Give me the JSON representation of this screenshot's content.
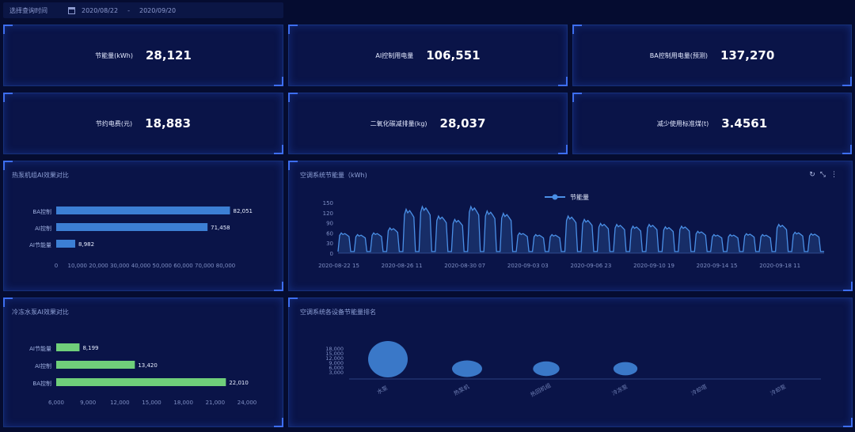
{
  "query": {
    "label": "选择查询时间",
    "start": "2020/08/22",
    "separator": "-",
    "end": "2020/09/20"
  },
  "kpis": [
    {
      "label": "节能量(kWh)",
      "value": "28,121"
    },
    {
      "label": "AI控制用电量",
      "value": "106,551"
    },
    {
      "label": "BA控制用电量(预测)",
      "value": "137,270"
    },
    {
      "label": "节约电费(元)",
      "value": "18,883"
    },
    {
      "label": "二氧化碳减排量(kg)",
      "value": "28,037"
    },
    {
      "label": "减少使用标准煤(t)",
      "value": "3.4561"
    }
  ],
  "panels": {
    "chiller_title": "热泵机组AI效果对比",
    "line_title": "空调系统节能量（kWh)",
    "pump_title": "冷冻水泵AI效果对比",
    "rank_title": "空调系统各设备节能量排名"
  },
  "colors": {
    "bar_blue": "#3c7fd4",
    "bar_green": "#6fcf7a",
    "line": "#4a8fe6"
  },
  "chart_data": [
    {
      "type": "bar",
      "orientation": "horizontal",
      "title": "热泵机组AI效果对比",
      "categories": [
        "BA控制",
        "AI控制",
        "AI节能量"
      ],
      "values": [
        82051,
        71458,
        8982
      ],
      "value_labels": [
        "82,051",
        "71,458",
        "8,982"
      ],
      "xlim": [
        0,
        80000
      ],
      "xticks": [
        "0",
        "10,000",
        "20,000",
        "30,000",
        "40,000",
        "50,000",
        "60,000",
        "70,000",
        "80,000"
      ]
    },
    {
      "type": "line",
      "title": "空调系统节能量（kWh)",
      "legend": "节能量",
      "ylim": [
        0,
        150
      ],
      "yticks": [
        "0",
        "30",
        "60",
        "90",
        "120",
        "150"
      ],
      "xticks": [
        "2020-08-22 15",
        "2020-08-26 11",
        "2020-08-30 07",
        "2020-09-03 03",
        "2020-09-06 23",
        "2020-09-10 19",
        "2020-09-14 15",
        "2020-09-18 11"
      ],
      "daily_peaks": [
        60,
        55,
        60,
        75,
        130,
        138,
        110,
        100,
        138,
        125,
        118,
        60,
        55,
        55,
        110,
        100,
        88,
        85,
        80,
        85,
        78,
        80,
        65,
        55,
        55,
        58,
        55,
        85,
        62,
        58
      ]
    },
    {
      "type": "bar",
      "orientation": "horizontal",
      "title": "冷冻水泵AI效果对比",
      "categories": [
        "AI节能量",
        "AI控制",
        "BA控制"
      ],
      "values": [
        8199,
        13420,
        22010
      ],
      "value_labels": [
        "8,199",
        "13,420",
        "22,010"
      ],
      "xlim": [
        6000,
        24000
      ],
      "xticks": [
        "6,000",
        "9,000",
        "12,000",
        "15,000",
        "18,000",
        "21,000",
        "24,000"
      ]
    },
    {
      "type": "scatter",
      "style": "bubble",
      "title": "空调系统各设备节能量排名",
      "categories": [
        "水泵",
        "热泵机",
        "热回机组",
        "冷冻泵",
        "冷却塔",
        "冷却泵"
      ],
      "values": [
        19000,
        11000,
        8500,
        7000,
        0,
        0
      ],
      "yticks": [
        "3,000",
        "6,000",
        "9,000",
        "12,000",
        "15,000",
        "18,000"
      ]
    }
  ]
}
